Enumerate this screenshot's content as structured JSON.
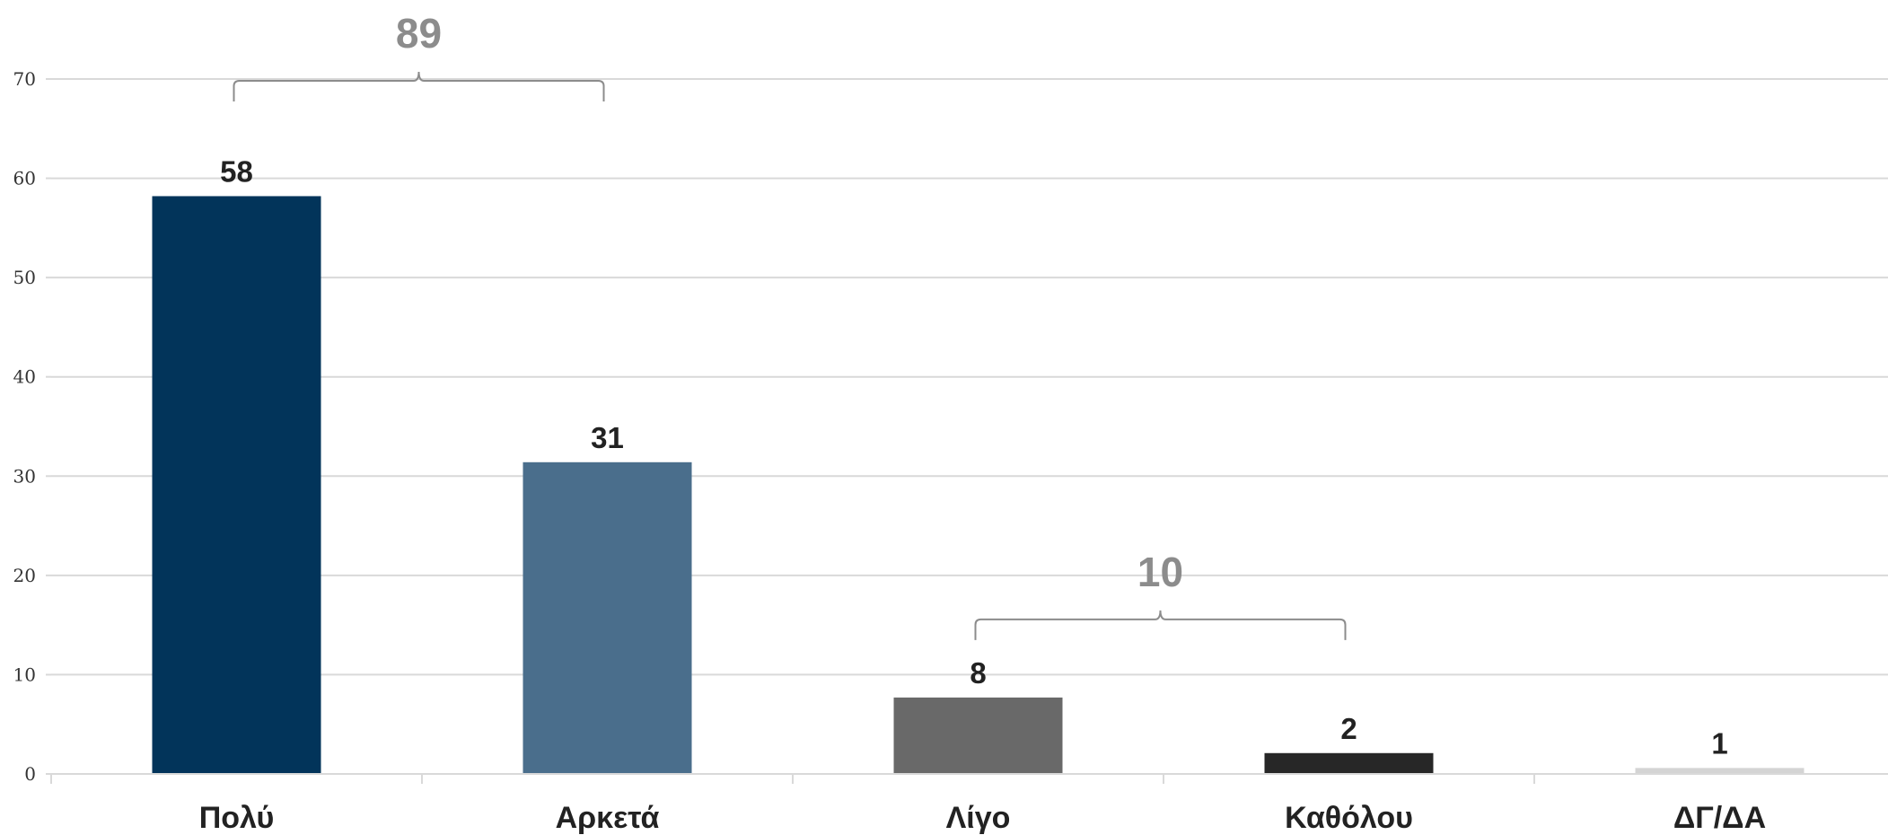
{
  "chart_data": {
    "type": "bar",
    "categories": [
      "Πολύ",
      "Αρκετά",
      "Λίγο",
      "Καθόλου",
      "ΔΓ/ΔΑ"
    ],
    "values": [
      58,
      31,
      8,
      2,
      1
    ],
    "bar_values": [
      58.2,
      31.4,
      7.7,
      2.1,
      0.6
    ],
    "colors": [
      "#02345a",
      "#4a6e8c",
      "#696969",
      "#272727",
      "#d4d4d4"
    ],
    "ylim": [
      0,
      70
    ],
    "yticks": [
      0,
      10,
      20,
      30,
      40,
      50,
      60,
      70
    ],
    "grid": true,
    "title": "",
    "xlabel": "",
    "ylabel": "",
    "group_annotations": [
      {
        "label": "89",
        "from": 0,
        "to": 1
      },
      {
        "label": "10",
        "from": 2,
        "to": 3
      }
    ]
  }
}
